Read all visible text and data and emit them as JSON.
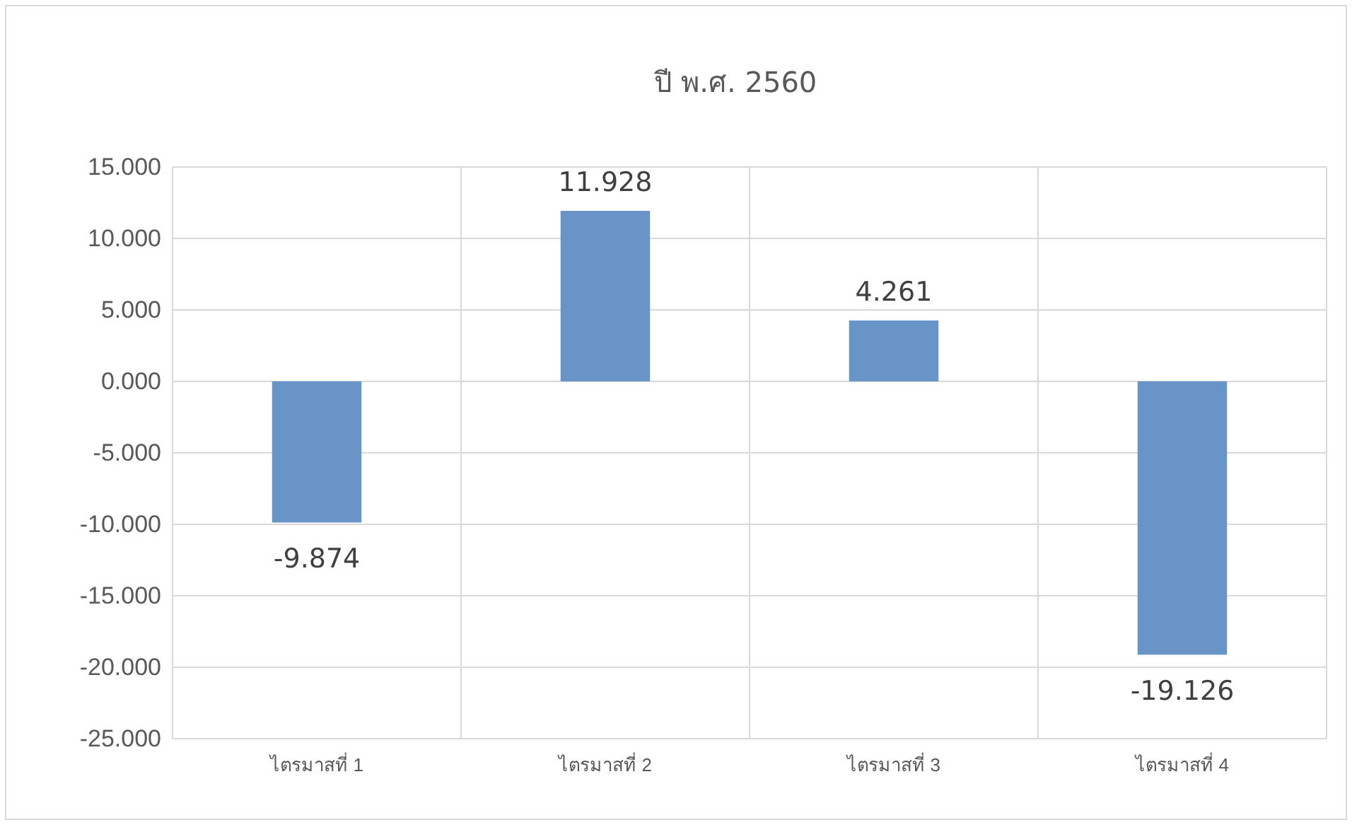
{
  "chart_data": {
    "type": "bar",
    "title": "ปี พ.ศ. 2560",
    "categories": [
      "ไตรมาสที่ 1",
      "ไตรมาสที่ 2",
      "ไตรมาสที่ 3",
      "ไตรมาสที่ 4"
    ],
    "values": [
      -9.874,
      11.928,
      4.261,
      -19.126
    ],
    "color": "#6894c8",
    "ylim": [
      -25,
      15
    ],
    "yticks": [
      {
        "value": -25,
        "label": "-25.000"
      },
      {
        "value": -20,
        "label": "-20.000"
      },
      {
        "value": -15,
        "label": "-15.000"
      },
      {
        "value": -10,
        "label": "-10.000"
      },
      {
        "value": -5,
        "label": "-5.000"
      },
      {
        "value": 0,
        "label": "0.000"
      },
      {
        "value": 5,
        "label": "5.000"
      },
      {
        "value": 10,
        "label": "10.000"
      },
      {
        "value": 15,
        "label": "15.000"
      }
    ],
    "grid": true,
    "data_labels": true
  }
}
